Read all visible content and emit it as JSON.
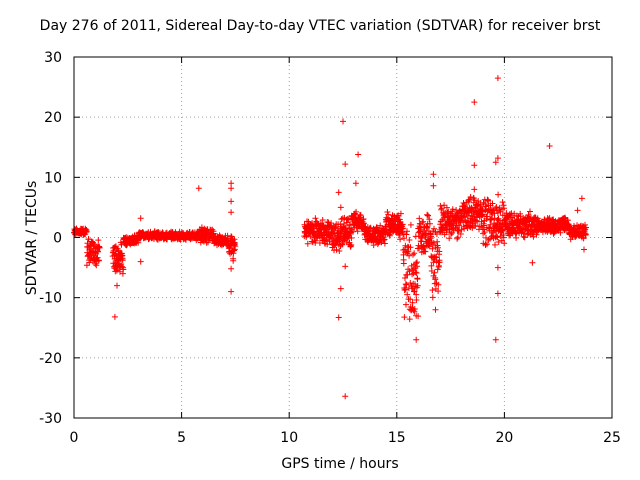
{
  "chart_data": {
    "type": "scatter",
    "title": "Day 276 of 2011, Sidereal Day-to-day VTEC variation (SDTVAR) for receiver brst",
    "xlabel": "GPS time / hours",
    "ylabel": "SDTVAR / TECUs",
    "xlim": [
      0,
      25
    ],
    "ylim": [
      -30,
      30
    ],
    "xticks": [
      0,
      5,
      10,
      15,
      20,
      25
    ],
    "yticks": [
      -30,
      -20,
      -10,
      0,
      10,
      20,
      30
    ],
    "grid": true,
    "marker": "+",
    "color": "#ff0000",
    "series": [
      {
        "name": "SDTVAR",
        "dense_segments": [
          {
            "x": [
              0.0,
              0.6
            ],
            "center": 1.0,
            "spread": 0.6
          },
          {
            "x": [
              0.6,
              1.2
            ],
            "center": -2.5,
            "spread": 2.8
          },
          {
            "x": [
              1.8,
              2.3
            ],
            "center": -3.5,
            "spread": 3.5
          },
          {
            "x": [
              2.3,
              3.0
            ],
            "center": -0.5,
            "spread": 1.0
          },
          {
            "x": [
              3.0,
              5.8
            ],
            "center": 0.3,
            "spread": 0.8
          },
          {
            "x": [
              5.8,
              6.5
            ],
            "center": 0.5,
            "spread": 1.5
          },
          {
            "x": [
              6.5,
              7.2
            ],
            "center": -0.5,
            "spread": 1.0
          },
          {
            "x": [
              7.2,
              7.5
            ],
            "center": -1.5,
            "spread": 3.0
          },
          {
            "x": [
              10.7,
              12.0
            ],
            "center": 1.0,
            "spread": 2.5
          },
          {
            "x": [
              12.0,
              12.9
            ],
            "center": 0.5,
            "spread": 3.0
          },
          {
            "x": [
              12.9,
              13.5
            ],
            "center": 2.5,
            "spread": 2.0
          },
          {
            "x": [
              13.5,
              14.5
            ],
            "center": 0.5,
            "spread": 2.0
          },
          {
            "x": [
              14.5,
              15.3
            ],
            "center": 2.0,
            "spread": 2.5
          },
          {
            "x": [
              15.3,
              16.0
            ],
            "center": -6.0,
            "spread": 9.0
          },
          {
            "x": [
              16.0,
              16.6
            ],
            "center": 0.0,
            "spread": 4.0
          },
          {
            "x": [
              16.6,
              17.0
            ],
            "center": -5.0,
            "spread": 7.0
          },
          {
            "x": [
              17.0,
              18.0
            ],
            "center": 2.5,
            "spread": 3.0
          },
          {
            "x": [
              18.0,
              19.0
            ],
            "center": 4.0,
            "spread": 3.0
          },
          {
            "x": [
              19.0,
              20.0
            ],
            "center": 3.0,
            "spread": 4.5
          },
          {
            "x": [
              20.0,
              21.5
            ],
            "center": 2.0,
            "spread": 2.5
          },
          {
            "x": [
              21.5,
              23.0
            ],
            "center": 2.0,
            "spread": 1.5
          },
          {
            "x": [
              23.0,
              23.8
            ],
            "center": 1.0,
            "spread": 1.5
          }
        ],
        "outliers": [
          [
            1.9,
            -13.2
          ],
          [
            2.0,
            -8.0
          ],
          [
            3.1,
            -4.0
          ],
          [
            3.1,
            3.2
          ],
          [
            5.8,
            8.2
          ],
          [
            7.3,
            9.0
          ],
          [
            7.3,
            8.2
          ],
          [
            7.3,
            6.0
          ],
          [
            7.3,
            4.2
          ],
          [
            7.3,
            -5.2
          ],
          [
            7.3,
            -9.0
          ],
          [
            12.3,
            7.5
          ],
          [
            12.4,
            5.0
          ],
          [
            12.3,
            -13.3
          ],
          [
            12.4,
            -8.5
          ],
          [
            12.5,
            19.3
          ],
          [
            12.6,
            12.2
          ],
          [
            12.6,
            -26.4
          ],
          [
            12.6,
            -4.8
          ],
          [
            13.1,
            9.0
          ],
          [
            13.2,
            13.8
          ],
          [
            14.6,
            3.8
          ],
          [
            15.8,
            -4.5
          ],
          [
            15.9,
            -13.0
          ],
          [
            15.9,
            -17.0
          ],
          [
            16.7,
            10.5
          ],
          [
            16.7,
            8.6
          ],
          [
            16.8,
            -12.0
          ],
          [
            18.6,
            22.5
          ],
          [
            18.6,
            12.0
          ],
          [
            18.6,
            8.0
          ],
          [
            19.6,
            12.5
          ],
          [
            19.7,
            13.2
          ],
          [
            19.7,
            26.5
          ],
          [
            19.7,
            -9.3
          ],
          [
            19.6,
            -17.0
          ],
          [
            19.7,
            -5.0
          ],
          [
            21.3,
            -4.2
          ],
          [
            22.1,
            15.2
          ],
          [
            23.4,
            4.5
          ],
          [
            23.6,
            6.5
          ],
          [
            23.7,
            -2.0
          ]
        ]
      }
    ]
  }
}
